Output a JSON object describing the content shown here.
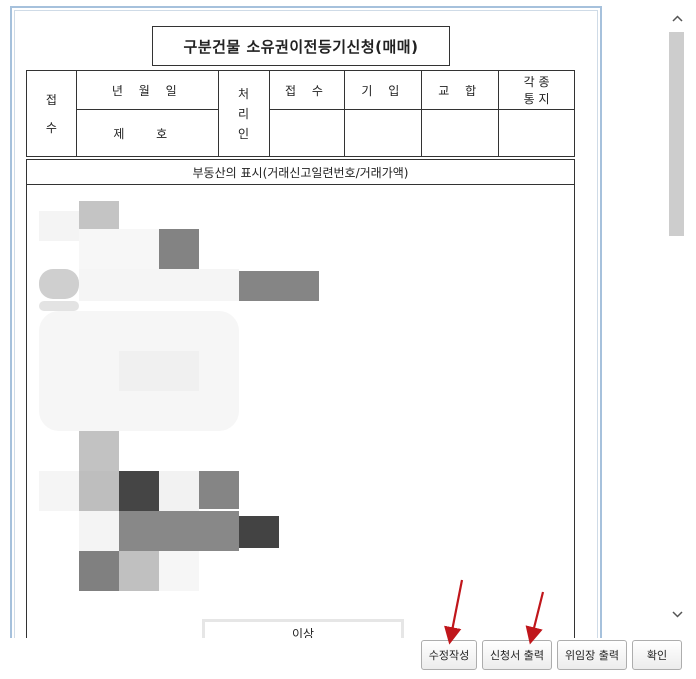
{
  "document": {
    "title": "구분건물 소유권이전등기신청(매매)",
    "table": {
      "receipt_label_1": "접",
      "receipt_label_2": "수",
      "date_label": "년 월 일",
      "number_label": "제 호",
      "processing_label_1": "처",
      "processing_label_2": "리",
      "processing_label_3": "인",
      "col_receipt": "접 수",
      "col_entry": "기 입",
      "col_check": "교 합",
      "col_notice_1": "각 종",
      "col_notice_2": "통 지"
    },
    "property_header": "부동산의 표시(거래신고일련번호/거래가액)",
    "end_label": "이상"
  },
  "buttons": {
    "edit": "수정작성",
    "print_application": "신청서 출력",
    "print_power_of_attorney": "위임장 출력",
    "confirm": "확인"
  },
  "colors": {
    "viewer_border": "#a6c1dc",
    "annotation_arrow": "#c0161b",
    "scroll_thumb": "#cdcdcd"
  }
}
